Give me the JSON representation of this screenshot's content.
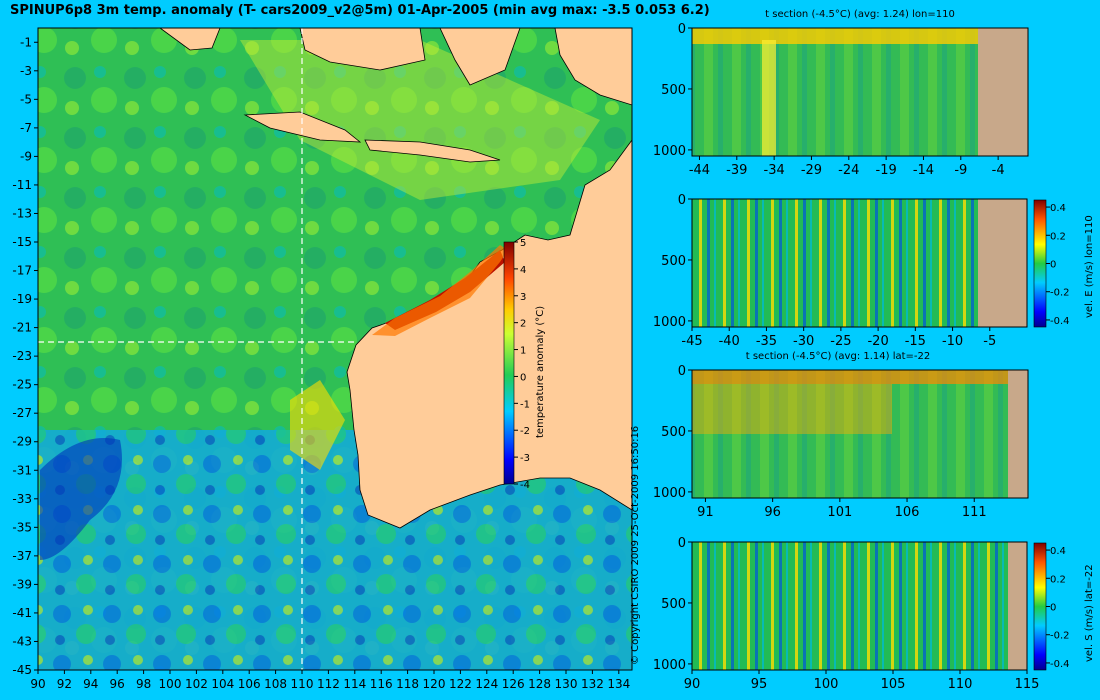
{
  "title": "SPINUP6p8 3m temp. anomaly (T- cars2009_v2@5m) 01-Apr-2005 (min avg max: -3.5 0.053 6.2)",
  "copyright": "© Copyright CSIRO 2009   25-Oct-2009 16:50:16",
  "chart_data": [
    {
      "type": "heatmap",
      "name": "map",
      "x_ticks": [
        "90",
        "92",
        "94",
        "96",
        "98",
        "100",
        "102",
        "104",
        "106",
        "108",
        "110",
        "112",
        "114",
        "116",
        "118",
        "120",
        "122",
        "124",
        "126",
        "128",
        "130",
        "132",
        "134"
      ],
      "y_ticks": [
        "-1",
        "-3",
        "-5",
        "-7",
        "-9",
        "-11",
        "-13",
        "-15",
        "-17",
        "-19",
        "-21",
        "-23",
        "-25",
        "-27",
        "-29",
        "-31",
        "-33",
        "-35",
        "-37",
        "-39",
        "-41",
        "-43",
        "-45"
      ],
      "xlim": [
        90,
        135
      ],
      "ylim": [
        -45,
        0
      ],
      "section_lon": 110,
      "section_lat": -22,
      "colorbar": {
        "label": "temperature anomaly (°C)",
        "ticks": [
          "5",
          "4",
          "3",
          "2",
          "1",
          "0",
          "-1",
          "-2",
          "-3",
          "-4"
        ],
        "range": [
          -4,
          5
        ]
      },
      "land_color": "#ffcc99"
    },
    {
      "type": "heatmap",
      "name": "t-section-lon",
      "title": "t section (-4.5°C) (avg: 1.24) lon=110",
      "x_ticks": [
        "-44",
        "-39",
        "-34",
        "-29",
        "-24",
        "-19",
        "-14",
        "-9",
        "-4"
      ],
      "xlim": [
        -45,
        0
      ],
      "y_ticks": [
        "0",
        "500",
        "1000"
      ],
      "ylim": [
        0,
        1050
      ]
    },
    {
      "type": "heatmap",
      "name": "vel-section-lon",
      "title": "",
      "x_ticks": [
        "-45",
        "-40",
        "-35",
        "-30",
        "-25",
        "-20",
        "-15",
        "-10",
        "-5"
      ],
      "xlim": [
        -45,
        0
      ],
      "y_ticks": [
        "0",
        "500",
        "1000"
      ],
      "ylim": [
        0,
        1050
      ],
      "colorbar": {
        "label": "vel. E (m/s) lon=110",
        "ticks": [
          "0.4",
          "0.2",
          "0",
          "-0.2",
          "-0.4"
        ],
        "range": [
          -0.45,
          0.45
        ]
      }
    },
    {
      "type": "heatmap",
      "name": "t-section-lat",
      "title": "t section (-4.5°C) (avg: 1.14) lat=-22",
      "x_ticks": [
        "91",
        "96",
        "101",
        "106",
        "111"
      ],
      "xlim": [
        90,
        115
      ],
      "y_ticks": [
        "0",
        "500",
        "1000"
      ],
      "ylim": [
        0,
        1050
      ]
    },
    {
      "type": "heatmap",
      "name": "vel-section-lat",
      "title": "",
      "x_ticks": [
        "90",
        "95",
        "100",
        "105",
        "110",
        "115"
      ],
      "xlim": [
        90,
        115
      ],
      "y_ticks": [
        "0",
        "500",
        "1000"
      ],
      "ylim": [
        0,
        1050
      ],
      "colorbar": {
        "label": "vel. S (m/s) lat=-22",
        "ticks": [
          "0.4",
          "0.2",
          "0",
          "-0.2",
          "-0.4"
        ],
        "range": [
          -0.45,
          0.45
        ]
      }
    }
  ]
}
